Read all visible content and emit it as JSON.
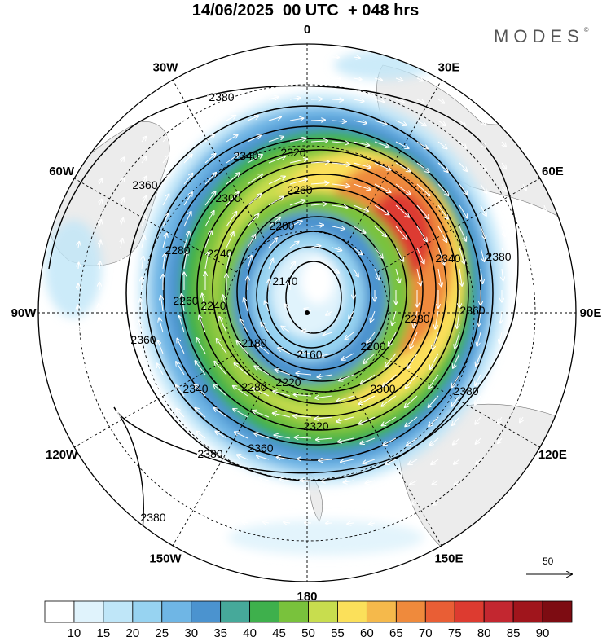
{
  "title": "14/06/2025  00 UTC  + 048 hrs",
  "brand": "MODES",
  "brand_mark": "©",
  "longitude_labels": [
    {
      "text": "0",
      "lon": 0
    },
    {
      "text": "30E",
      "lon": 30
    },
    {
      "text": "60E",
      "lon": 60
    },
    {
      "text": "90E",
      "lon": 90
    },
    {
      "text": "120E",
      "lon": 120
    },
    {
      "text": "150E",
      "lon": 150
    },
    {
      "text": "180",
      "lon": 180
    },
    {
      "text": "150W",
      "lon": -150
    },
    {
      "text": "120W",
      "lon": -120
    },
    {
      "text": "90W",
      "lon": -90
    },
    {
      "text": "60W",
      "lon": -60
    },
    {
      "text": "30W",
      "lon": -30
    }
  ],
  "contour_labels": [
    {
      "text": "2380",
      "at": [
        272,
        124
      ]
    },
    {
      "text": "2380",
      "at": [
        612,
        320
      ]
    },
    {
      "text": "2380",
      "at": [
        572,
        485
      ]
    },
    {
      "text": "2380",
      "at": [
        258,
        562
      ]
    },
    {
      "text": "2380",
      "at": [
        188,
        640
      ]
    },
    {
      "text": "2360",
      "at": [
        178,
        232
      ]
    },
    {
      "text": "2360",
      "at": [
        176,
        422
      ]
    },
    {
      "text": "2360",
      "at": [
        580,
        386
      ]
    },
    {
      "text": "2360",
      "at": [
        320,
        555
      ]
    },
    {
      "text": "2340",
      "at": [
        302,
        196
      ]
    },
    {
      "text": "2340",
      "at": [
        550,
        322
      ]
    },
    {
      "text": "2340",
      "at": [
        240,
        482
      ]
    },
    {
      "text": "2320",
      "at": [
        360,
        192
      ]
    },
    {
      "text": "2320",
      "at": [
        388,
        528
      ]
    },
    {
      "text": "2300",
      "at": [
        280,
        248
      ]
    },
    {
      "text": "2300",
      "at": [
        470,
        482
      ]
    },
    {
      "text": "2280",
      "at": [
        218,
        312
      ]
    },
    {
      "text": "2280",
      "at": [
        512,
        396
      ]
    },
    {
      "text": "2280",
      "at": [
        312,
        480
      ]
    },
    {
      "text": "2260",
      "at": [
        368,
        238
      ]
    },
    {
      "text": "2260",
      "at": [
        228,
        374
      ]
    },
    {
      "text": "2240",
      "at": [
        270,
        316
      ]
    },
    {
      "text": "2240",
      "at": [
        262,
        380
      ]
    },
    {
      "text": "2220",
      "at": [
        354,
        474
      ]
    },
    {
      "text": "2200",
      "at": [
        346,
        282
      ]
    },
    {
      "text": "2200",
      "at": [
        458,
        430
      ]
    },
    {
      "text": "2180",
      "at": [
        312,
        426
      ]
    },
    {
      "text": "2160",
      "at": [
        380,
        440
      ]
    },
    {
      "text": "2140",
      "at": [
        350,
        350
      ]
    }
  ],
  "colorbar": {
    "ticks": [
      "10",
      "15",
      "20",
      "25",
      "30",
      "35",
      "40",
      "45",
      "50",
      "55",
      "60",
      "65",
      "70",
      "75",
      "80",
      "85",
      "90"
    ],
    "colors": [
      "#ffffff",
      "#e0f3fc",
      "#bfe6f8",
      "#97d3f1",
      "#6fb6e5",
      "#4b93cf",
      "#46a99a",
      "#3eb04c",
      "#79c23c",
      "#c8dd4e",
      "#fbe05a",
      "#f5b94b",
      "#ef8a3c",
      "#e95e35",
      "#dd3b30",
      "#c32730",
      "#a0151c",
      "#7d0c12"
    ]
  },
  "reference_vector": {
    "label": "50"
  }
}
